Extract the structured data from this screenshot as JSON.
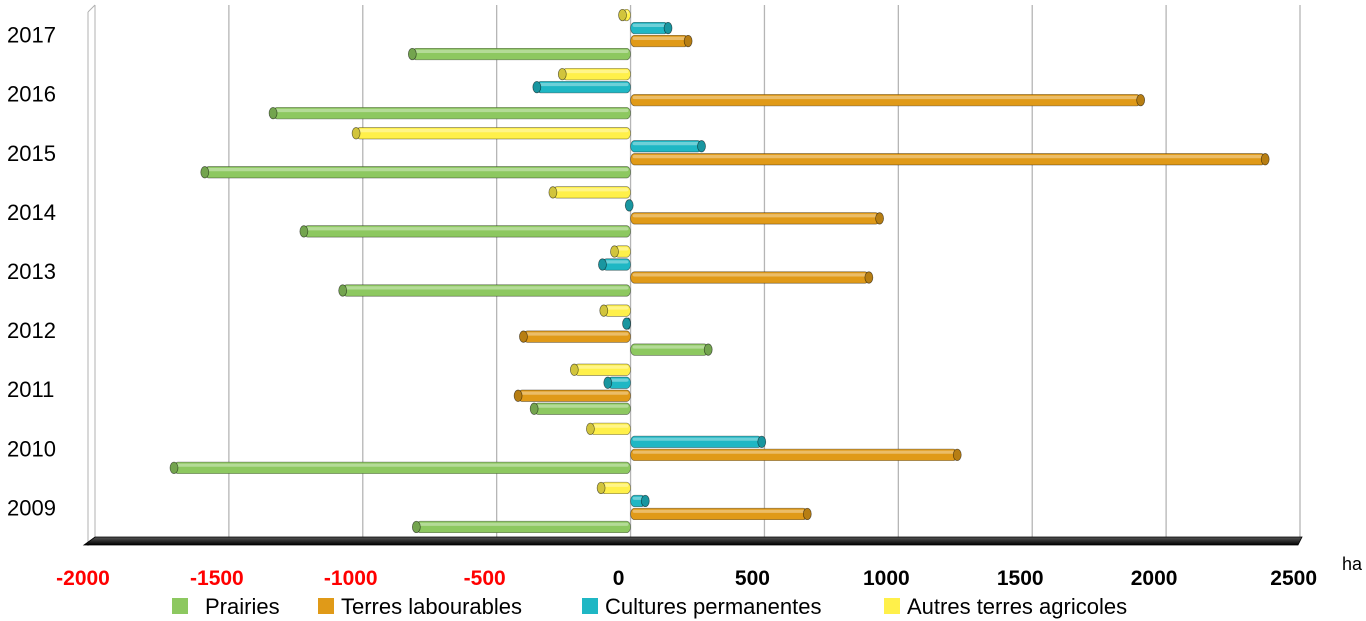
{
  "chart_data": {
    "type": "bar",
    "orientation": "horizontal",
    "categories": [
      "2009",
      "2010",
      "2011",
      "2012",
      "2013",
      "2014",
      "2015",
      "2016",
      "2017"
    ],
    "series": [
      {
        "name": "Prairies",
        "color": "#8dc860",
        "values": [
          -800,
          -1705,
          -360,
          290,
          -1075,
          -1220,
          -1590,
          -1335,
          -815
        ]
      },
      {
        "name": "Terres labourables",
        "color": "#e09a18",
        "values": [
          660,
          1220,
          -420,
          -400,
          890,
          930,
          2370,
          1905,
          215
        ]
      },
      {
        "name": "Cultures permanentes",
        "color": "#1fb7c4",
        "values": [
          55,
          490,
          -85,
          -15,
          -105,
          -5,
          265,
          -350,
          140
        ]
      },
      {
        "name": "Autres terres agricoles",
        "color": "#fff04a",
        "values": [
          -110,
          -150,
          -210,
          -100,
          -60,
          -290,
          -1025,
          -255,
          -30
        ]
      }
    ],
    "xlim": [
      -2000,
      2500
    ],
    "xticks": [
      -2000,
      -1500,
      -1000,
      -500,
      0,
      500,
      1000,
      1500,
      2000,
      2500
    ],
    "xtick_labels": [
      "-2000",
      "-1500",
      "-1000",
      "-500",
      "0",
      "500",
      "1000",
      "1500",
      "2000",
      "2500"
    ],
    "negative_tick_color": "#ff0000",
    "positive_tick_color": "#000000",
    "unit_label": "ha",
    "grid": true,
    "legend": "bottom"
  }
}
